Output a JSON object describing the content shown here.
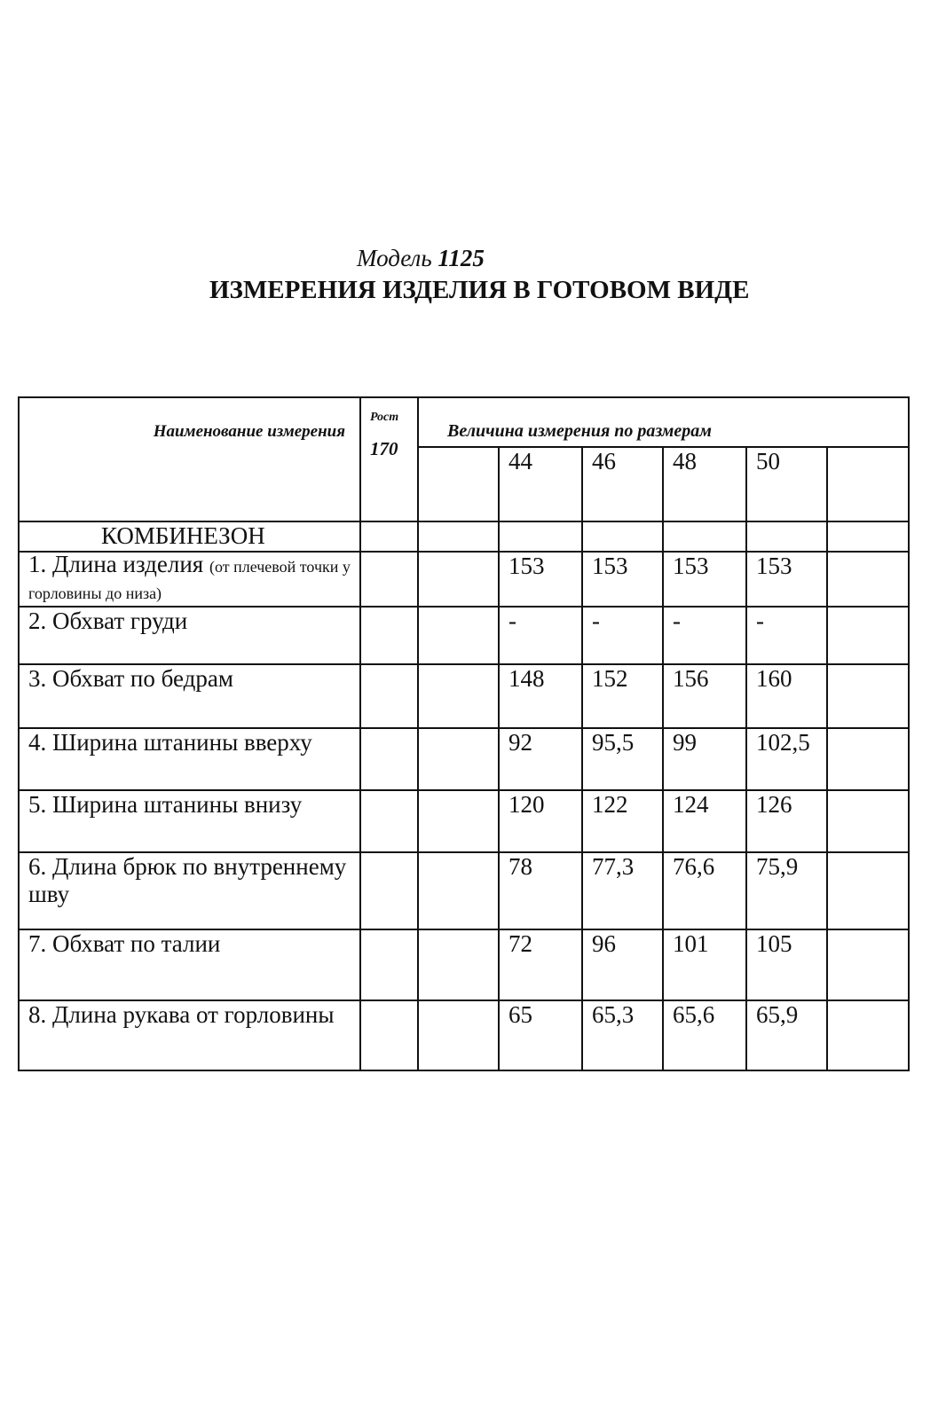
{
  "model_label": "Модель",
  "model_number": "1125",
  "title": "ИЗМЕРЕНИЯ ИЗДЕЛИЯ В ГОТОВОМ ВИДЕ",
  "table": {
    "header_name": "Наименование измерения",
    "header_height_label": "Рост",
    "header_height_value": "170",
    "header_sizes": "Величина измерения по размерам",
    "sizes": [
      "44",
      "46",
      "48",
      "50"
    ],
    "section": "КОМБИНЕЗОН",
    "rows": [
      {
        "name": "1. Длина изделия",
        "note": "(от плечевой точки у горловины до низа)",
        "values": [
          "153",
          "153",
          "153",
          "153"
        ]
      },
      {
        "name": "2. Обхват груди",
        "values": [
          "-",
          "-",
          "-",
          "-"
        ]
      },
      {
        "name": "3. Обхват по бедрам",
        "values": [
          "148",
          "152",
          "156",
          "160"
        ]
      },
      {
        "name": "4. Ширина штанины вверху",
        "values": [
          "92",
          "95,5",
          "99",
          "102,5"
        ]
      },
      {
        "name": "5. Ширина штанины внизу",
        "values": [
          "120",
          "122",
          "124",
          "126"
        ]
      },
      {
        "name": "6. Длина брюк по внутреннему шву",
        "values": [
          "78",
          "77,3",
          "76,6",
          "75,9"
        ]
      },
      {
        "name": "7. Обхват по талии",
        "values": [
          "72",
          "96",
          "101",
          "105"
        ]
      },
      {
        "name": "8. Длина рукава от горловины",
        "values": [
          "65",
          "65,3",
          "65,6",
          "65,9"
        ]
      }
    ]
  }
}
